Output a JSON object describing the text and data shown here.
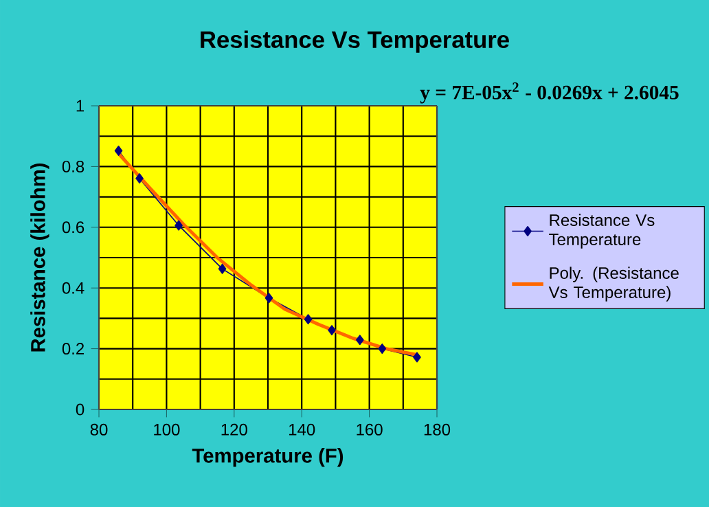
{
  "chart_data": {
    "type": "line",
    "title": "Resistance Vs Temperature",
    "xlabel": "Temperature (F)",
    "ylabel": "Resistance (kilohm)",
    "annotations": [
      "y = 7E-05x$^{2}$ - 0.0269x + 2.6045"
    ],
    "xlim": [
      80,
      180
    ],
    "xticks": [
      80,
      100,
      120,
      140,
      160,
      180
    ],
    "ylim": [
      0,
      1
    ],
    "yticks": [
      0,
      0.2,
      0.4,
      0.6,
      0.8,
      1
    ],
    "grid": true,
    "legend": "right",
    "series": [
      {
        "name": "Resistance Vs Temperature",
        "color": "#000080",
        "marker": "diamond",
        "line_style": "solid",
        "x": [
          85.8,
          92.0,
          103.6,
          116.5,
          130.3,
          141.9,
          148.9,
          157.2,
          163.8,
          174.1
        ],
        "values": [
          0.852,
          0.761,
          0.606,
          0.463,
          0.367,
          0.297,
          0.261,
          0.229,
          0.2,
          0.172
        ]
      },
      {
        "name": "Poly. (Resistance Vs Temperature)",
        "color": "#ff6600",
        "marker": "none",
        "line_style": "solid",
        "x": [
          86,
          95,
          105,
          115,
          125,
          135,
          145,
          155,
          165,
          174
        ],
        "values": [
          0.84,
          0.73,
          0.61,
          0.5,
          0.41,
          0.33,
          0.28,
          0.235,
          0.2,
          0.18
        ]
      }
    ]
  }
}
